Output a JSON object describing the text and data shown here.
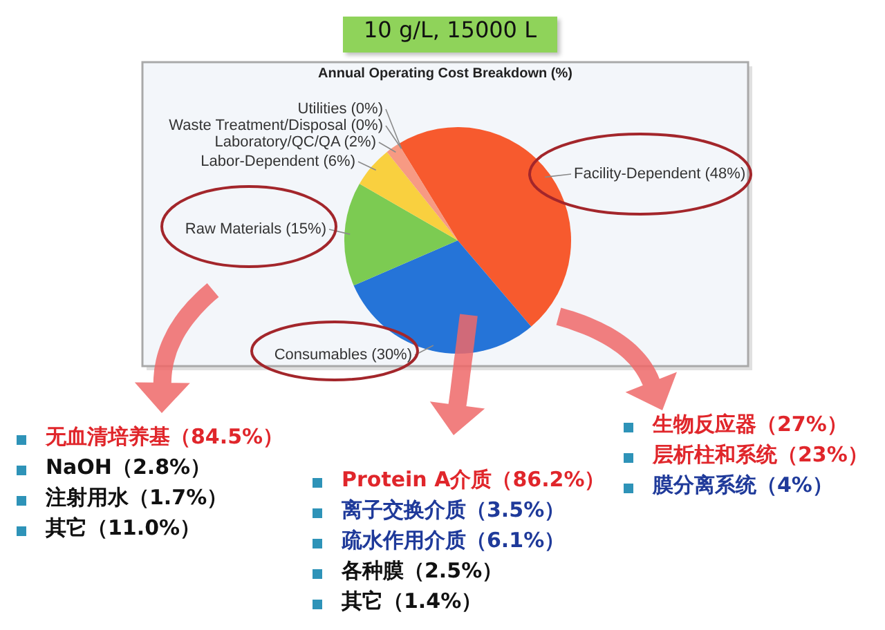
{
  "chart_data": {
    "type": "pie",
    "title": "10 g/L, 15000 L",
    "subtitle": "Annual Operating Cost Breakdown (%)",
    "categories": [
      "Facility-Dependent",
      "Consumables",
      "Raw Materials",
      "Labor-Dependent",
      "Laboratory/QC/QA",
      "Waste Treatment/Disposal",
      "Utilities"
    ],
    "values": [
      48,
      30,
      15,
      6,
      2,
      0,
      0
    ],
    "colors": [
      "#f75a2e",
      "#2574d8",
      "#7ccb52",
      "#f9d03f",
      "#f79a83",
      "#ab47bc",
      "#26a69a"
    ],
    "value_labels": [
      "(48%)",
      "(30%)",
      "(15%)",
      "(6%)",
      "(2%)",
      "(0%)",
      "(0%)"
    ],
    "annotations": [
      "无血清培养基（84.5%）",
      "NaOH（2.8%）",
      "注射用水（1.7%）",
      "其它（11.0%）",
      "Protein A介质（86.2%）",
      "离子交换介质（3.5%）",
      "疏水作用介质（6.1%）",
      "各种膜（2.5%）",
      "其它（1.4%）",
      "生物反应器（27%）",
      "层析柱和系统（23%）",
      "膜分离系统（4%）"
    ],
    "legend": false
  }
}
